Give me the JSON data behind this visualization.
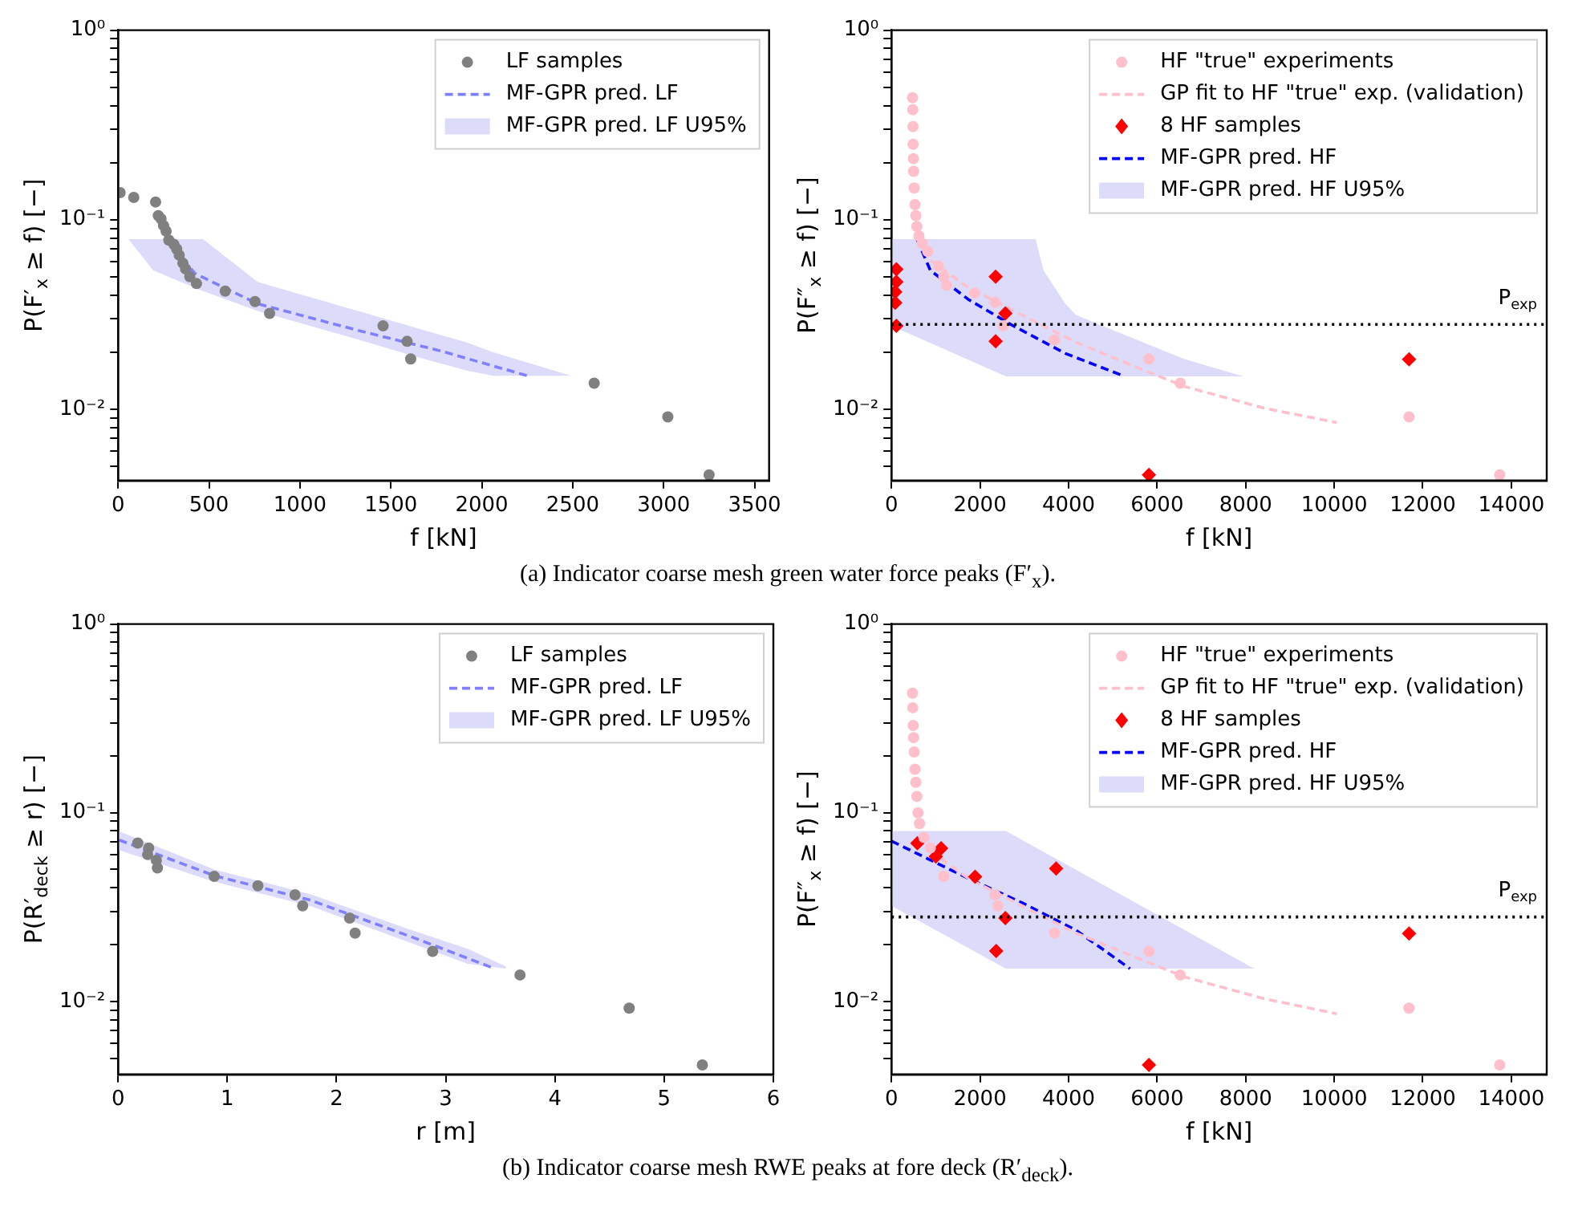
{
  "chart_data": [
    {
      "type": "scatter",
      "xlabel": "f [kN]",
      "ylabel": "P(F′$_{x}$ ≥ f) [−]",
      "log": "y",
      "legend": "top right",
      "annotations": [
        "(a) Indicator coarse mesh green water force peaks (F′$_{x}$)."
      ],
      "xlim": [
        0,
        3580
      ],
      "xticks": [
        0,
        500,
        1000,
        1500,
        2000,
        2500,
        3000,
        3500
      ],
      "ylim": [
        0.0042,
        1
      ],
      "yticks": [
        {
          "value": 0.005,
          "label": null
        },
        {
          "value": 0.006,
          "label": null
        },
        {
          "value": 0.007,
          "label": null
        },
        {
          "value": 0.008,
          "label": null
        },
        {
          "value": 0.009,
          "label": null
        },
        {
          "value": 0.01,
          "label": "10⁻²"
        },
        {
          "value": 0.02,
          "label": null
        },
        {
          "value": 0.03,
          "label": null
        },
        {
          "value": 0.04,
          "label": null
        },
        {
          "value": 0.05,
          "label": null
        },
        {
          "value": 0.06,
          "label": null
        },
        {
          "value": 0.07,
          "label": null
        },
        {
          "value": 0.08,
          "label": null
        },
        {
          "value": 0.09,
          "label": null
        },
        {
          "value": 0.1,
          "label": "10⁻¹"
        },
        {
          "value": 0.2,
          "label": null
        },
        {
          "value": 0.3,
          "label": null
        },
        {
          "value": 0.4,
          "label": null
        },
        {
          "value": 0.5,
          "label": null
        },
        {
          "value": 0.6,
          "label": null
        },
        {
          "value": 0.7,
          "label": null
        },
        {
          "value": 0.8,
          "label": null
        },
        {
          "value": 0.9,
          "label": null
        },
        {
          "value": 1,
          "label": "10⁰"
        }
      ],
      "series": [
        {
          "type": "scatter",
          "name": "LF samples",
          "color": "#808080",
          "marker": "circle",
          "x": [
            11,
            86,
            206,
            221,
            236,
            250,
            264,
            279,
            307,
            322,
            336,
            356,
            371,
            394,
            431,
            589,
            753,
            833,
            1457,
            1589,
            1609,
            2618,
            3023,
            3250
          ],
          "values": [
            0.139,
            0.131,
            0.124,
            0.105,
            0.101,
            0.093,
            0.087,
            0.078,
            0.074,
            0.07,
            0.065,
            0.059,
            0.055,
            0.05,
            0.046,
            0.042,
            0.037,
            0.032,
            0.0275,
            0.0228,
            0.0184,
            0.0137,
            0.0091,
            0.0045
          ]
        },
        {
          "type": "line",
          "name": "MF-GPR pred. LF",
          "color": "#8080ff",
          "line_style": "dashed",
          "x": [
            264,
            422,
            767,
            1342,
            1773,
            2262
          ],
          "values": [
            0.079,
            0.052,
            0.036,
            0.0257,
            0.0203,
            0.0149
          ]
        },
        {
          "type": "line",
          "name": "MF-GPR pred. LF U95%",
          "color": "#dcdcfa",
          "x": [
            57,
            193,
            466,
            767,
            1055,
            1342,
            1630,
            1917,
            2061,
            2492
          ],
          "values": [
            null,
            null,
            null,
            null,
            null,
            null,
            null,
            null,
            null,
            null
          ],
          "lower": [
            0.079,
            0.054,
            0.042,
            0.033,
            0.0275,
            0.023,
            0.019,
            0.016,
            0.015,
            0.015
          ],
          "upper": [
            0.079,
            0.079,
            0.079,
            0.047,
            0.039,
            0.0325,
            0.027,
            0.0225,
            0.02,
            0.015
          ]
        }
      ]
    },
    {
      "type": "scatter",
      "xlabel": "f [kN]",
      "ylabel": "P(F″$_{x}$ ≥ f) [−]",
      "log": "y",
      "legend": "top right",
      "xlim": [
        0,
        14800
      ],
      "xticks": [
        0,
        2000,
        4000,
        6000,
        8000,
        10000,
        12000,
        14000
      ],
      "ylim": [
        0.0042,
        1
      ],
      "yticks": [
        {
          "value": 0.005,
          "label": null
        },
        {
          "value": 0.006,
          "label": null
        },
        {
          "value": 0.007,
          "label": null
        },
        {
          "value": 0.008,
          "label": null
        },
        {
          "value": 0.009,
          "label": null
        },
        {
          "value": 0.01,
          "label": "10⁻²"
        },
        {
          "value": 0.02,
          "label": null
        },
        {
          "value": 0.03,
          "label": null
        },
        {
          "value": 0.04,
          "label": null
        },
        {
          "value": 0.05,
          "label": null
        },
        {
          "value": 0.06,
          "label": null
        },
        {
          "value": 0.07,
          "label": null
        },
        {
          "value": 0.08,
          "label": null
        },
        {
          "value": 0.09,
          "label": null
        },
        {
          "value": 0.1,
          "label": "10⁻¹"
        },
        {
          "value": 0.2,
          "label": null
        },
        {
          "value": 0.3,
          "label": null
        },
        {
          "value": 0.4,
          "label": null
        },
        {
          "value": 0.5,
          "label": null
        },
        {
          "value": 0.6,
          "label": null
        },
        {
          "value": 0.7,
          "label": null
        },
        {
          "value": 0.8,
          "label": null
        },
        {
          "value": 0.9,
          "label": null
        },
        {
          "value": 1,
          "label": "10⁰"
        }
      ],
      "ref_lines": [
        {
          "axis": "y",
          "value": 0.028,
          "label": "P$_{exp}$",
          "color": "#000000",
          "line_style": "dotted"
        }
      ],
      "series": [
        {
          "type": "scatter",
          "name": "HF \"true\" experiments",
          "color": "#ffc0cb",
          "marker": "circle",
          "x": [
            475,
            480,
            485,
            488,
            495,
            500,
            512,
            530,
            550,
            573,
            620,
            695,
            817,
            1060,
            1182,
            1243,
            1877,
            2340,
            2523,
            3681,
            5815,
            6522,
            11690,
            13738
          ],
          "values": [
            0.44,
            0.38,
            0.31,
            0.25,
            0.21,
            0.18,
            0.147,
            0.12,
            0.105,
            0.092,
            0.082,
            0.075,
            0.068,
            0.057,
            0.05,
            0.045,
            0.041,
            0.0366,
            0.0275,
            0.0232,
            0.0184,
            0.0137,
            0.0091,
            0.0045
          ]
        },
        {
          "type": "line",
          "name": "GP fit to HF \"true\" exp. (validation)",
          "color": "#ffc0cb",
          "line_style": "dashed",
          "x": [
            878,
            1731,
            2950,
            4169,
            5388,
            6607,
            8435,
            10057
          ],
          "values": [
            0.061,
            0.044,
            0.0314,
            0.0225,
            0.0172,
            0.0132,
            0.0101,
            0.0085
          ]
        },
        {
          "type": "scatter",
          "name": "8 HF samples",
          "color": "#ff0000",
          "marker": "diamond",
          "x": [
            110,
            110,
            85,
            85,
            110,
            2353,
            2353,
            2572,
            5815,
            11690
          ],
          "values": [
            0.0547,
            0.047,
            0.0416,
            0.0364,
            0.0275,
            0.05,
            0.0228,
            0.032,
            0.0045,
            0.0183
          ]
        },
        {
          "type": "line",
          "name": "MF-GPR pred. HF",
          "color": "#0000ff",
          "line_style": "dashed",
          "x": [
            573,
            878,
            1731,
            2706,
            3925,
            5266
          ],
          "values": [
            0.079,
            0.054,
            0.038,
            0.0279,
            0.0197,
            0.0149
          ]
        },
        {
          "type": "line",
          "name": "MF-GPR pred. HF U95%",
          "color": "#dcdcfa",
          "x": [
            0,
            2584,
            3255,
            3437,
            3925,
            4169,
            5388,
            6607,
            7948
          ],
          "values": [
            null,
            null,
            null,
            null,
            null,
            null,
            null,
            null,
            null
          ],
          "lower": [
            0.0275,
            0.0149,
            0.0149,
            0.0149,
            0.0149,
            0.0149,
            0.0149,
            0.0149,
            0.0149
          ],
          "upper": [
            0.079,
            0.079,
            0.079,
            0.054,
            0.036,
            0.0314,
            0.024,
            0.0184,
            0.0149
          ]
        }
      ]
    },
    {
      "type": "scatter",
      "xlabel": "r [m]",
      "ylabel": "P(R′$_{deck}$ ≥ r) [−]",
      "log": "y",
      "legend": "top right",
      "annotations": [
        "(b) Indicator coarse mesh RWE peaks at fore deck (R′$_{deck}$)."
      ],
      "xlim": [
        0,
        6
      ],
      "xticks": [
        0,
        1,
        2,
        3,
        4,
        5,
        6
      ],
      "ylim": [
        0.0041,
        1
      ],
      "yticks": [
        {
          "value": 0.005,
          "label": null
        },
        {
          "value": 0.006,
          "label": null
        },
        {
          "value": 0.007,
          "label": null
        },
        {
          "value": 0.008,
          "label": null
        },
        {
          "value": 0.009,
          "label": null
        },
        {
          "value": 0.01,
          "label": "10⁻²"
        },
        {
          "value": 0.02,
          "label": null
        },
        {
          "value": 0.03,
          "label": null
        },
        {
          "value": 0.04,
          "label": null
        },
        {
          "value": 0.05,
          "label": null
        },
        {
          "value": 0.06,
          "label": null
        },
        {
          "value": 0.07,
          "label": null
        },
        {
          "value": 0.08,
          "label": null
        },
        {
          "value": 0.09,
          "label": null
        },
        {
          "value": 0.1,
          "label": "10⁻¹"
        },
        {
          "value": 0.2,
          "label": null
        },
        {
          "value": 0.3,
          "label": null
        },
        {
          "value": 0.4,
          "label": null
        },
        {
          "value": 0.5,
          "label": null
        },
        {
          "value": 0.6,
          "label": null
        },
        {
          "value": 0.7,
          "label": null
        },
        {
          "value": 0.8,
          "label": null
        },
        {
          "value": 0.9,
          "label": null
        },
        {
          "value": 1,
          "label": "10⁰"
        }
      ],
      "series": [
        {
          "type": "scatter",
          "name": "LF samples",
          "color": "#808080",
          "marker": "circle",
          "x": [
            0.18,
            0.28,
            0.27,
            0.35,
            0.36,
            0.88,
            1.28,
            1.62,
            1.69,
            2.12,
            2.17,
            2.88,
            3.68,
            4.68,
            5.35
          ],
          "values": [
            0.069,
            0.065,
            0.06,
            0.056,
            0.051,
            0.046,
            0.041,
            0.0367,
            0.0321,
            0.0276,
            0.023,
            0.0184,
            0.0138,
            0.0092,
            0.0046
          ]
        },
        {
          "type": "line",
          "name": "MF-GPR pred. LF",
          "color": "#8080ff",
          "line_style": "dashed",
          "x": [
            0.01,
            0.88,
            1.76,
            2.72,
            3.45
          ],
          "values": [
            0.0716,
            0.0464,
            0.0344,
            0.0216,
            0.0149
          ]
        },
        {
          "type": "line",
          "name": "MF-GPR pred. LF U95%",
          "color": "#dcdcfa",
          "x": [
            0,
            0.88,
            1.76,
            2.72,
            3.2,
            3.55
          ],
          "values": [
            null,
            null,
            null,
            null,
            null,
            null
          ],
          "lower": [
            0.0635,
            0.043,
            0.032,
            0.02,
            0.0158,
            0.0149
          ],
          "upper": [
            0.08,
            0.05,
            0.037,
            0.0235,
            0.019,
            0.0153
          ]
        }
      ]
    },
    {
      "type": "scatter",
      "xlabel": "f [kN]",
      "ylabel": "P(F″$_{x}$ ≥ f) [−]",
      "log": "y",
      "legend": "top right",
      "xlim": [
        0,
        14800
      ],
      "xticks": [
        0,
        2000,
        4000,
        6000,
        8000,
        10000,
        12000,
        14000
      ],
      "ylim": [
        0.0041,
        1
      ],
      "yticks": [
        {
          "value": 0.005,
          "label": null
        },
        {
          "value": 0.006,
          "label": null
        },
        {
          "value": 0.007,
          "label": null
        },
        {
          "value": 0.008,
          "label": null
        },
        {
          "value": 0.009,
          "label": null
        },
        {
          "value": 0.01,
          "label": "10⁻²"
        },
        {
          "value": 0.02,
          "label": null
        },
        {
          "value": 0.03,
          "label": null
        },
        {
          "value": 0.04,
          "label": null
        },
        {
          "value": 0.05,
          "label": null
        },
        {
          "value": 0.06,
          "label": null
        },
        {
          "value": 0.07,
          "label": null
        },
        {
          "value": 0.08,
          "label": null
        },
        {
          "value": 0.09,
          "label": null
        },
        {
          "value": 0.1,
          "label": "10⁻¹"
        },
        {
          "value": 0.2,
          "label": null
        },
        {
          "value": 0.3,
          "label": null
        },
        {
          "value": 0.4,
          "label": null
        },
        {
          "value": 0.5,
          "label": null
        },
        {
          "value": 0.6,
          "label": null
        },
        {
          "value": 0.7,
          "label": null
        },
        {
          "value": 0.8,
          "label": null
        },
        {
          "value": 0.9,
          "label": null
        },
        {
          "value": 1,
          "label": "10⁰"
        }
      ],
      "ref_lines": [
        {
          "axis": "y",
          "value": 0.028,
          "label": "P$_{exp}$",
          "color": "#000000",
          "line_style": "dotted"
        }
      ],
      "series": [
        {
          "type": "scatter",
          "name": "HF \"true\" experiments",
          "color": "#ffc0cb",
          "marker": "circle",
          "x": [
            475,
            480,
            490,
            500,
            512,
            530,
            550,
            573,
            600,
            634,
            731,
            878,
            1182,
            2340,
            2401,
            3681,
            5815,
            6522,
            11690,
            13738
          ],
          "values": [
            0.43,
            0.36,
            0.29,
            0.25,
            0.21,
            0.17,
            0.145,
            0.122,
            0.1,
            0.0875,
            0.074,
            0.065,
            0.046,
            0.0367,
            0.0321,
            0.023,
            0.0184,
            0.0138,
            0.0092,
            0.0046
          ]
        },
        {
          "type": "line",
          "name": "GP fit to HF \"true\" exp. (validation)",
          "color": "#ffc0cb",
          "line_style": "dashed",
          "x": [
            878,
            1731,
            2950,
            4169,
            5388,
            6607,
            8435,
            10057
          ],
          "values": [
            0.0627,
            0.0449,
            0.0321,
            0.023,
            0.0176,
            0.0135,
            0.0103,
            0.0086
          ]
        },
        {
          "type": "scatter",
          "name": "8 HF samples",
          "color": "#ff0000",
          "marker": "diamond",
          "x": [
            585,
            1000,
            1121,
            1889,
            3718,
            2572,
            2365,
            5815,
            11690
          ],
          "values": [
            0.0688,
            0.0586,
            0.0648,
            0.0458,
            0.0506,
            0.0276,
            0.0185,
            0.0046,
            0.0229
          ]
        },
        {
          "type": "line",
          "name": "MF-GPR pred. HF",
          "color": "#0000ff",
          "line_style": "dashed",
          "x": [
            0,
            1731,
            2950,
            4169,
            5388
          ],
          "values": [
            0.0707,
            0.0449,
            0.0333,
            0.0238,
            0.0149
          ]
        },
        {
          "type": "line",
          "name": "MF-GPR pred. HF U95%",
          "color": "#dcdcfa",
          "x": [
            0,
            2584,
            5388,
            8192
          ],
          "values": [
            null,
            null,
            null,
            null
          ],
          "lower": [
            0.0321,
            0.0149,
            0.0149,
            0.0149
          ],
          "upper": [
            0.08,
            0.08,
            0.0346,
            0.0149
          ]
        }
      ]
    }
  ]
}
